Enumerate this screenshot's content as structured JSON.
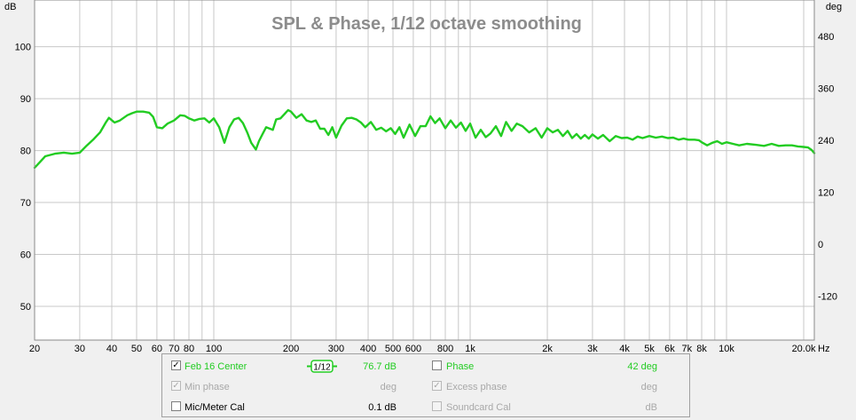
{
  "chart_data": {
    "type": "line",
    "title": "SPL & Phase, 1/12 octave smoothing",
    "ylabel": "dB",
    "y2label": "deg",
    "xunit": "Hz",
    "xscale": "log",
    "xlim": [
      20,
      22000
    ],
    "ylim": [
      43.5,
      109
    ],
    "y2lim": [
      -222,
      564
    ],
    "grid": true,
    "xticks": [
      {
        "v": 20,
        "label": "20"
      },
      {
        "v": 30,
        "label": "30"
      },
      {
        "v": 40,
        "label": "40"
      },
      {
        "v": 50,
        "label": "50"
      },
      {
        "v": 60,
        "label": "60"
      },
      {
        "v": 70,
        "label": "70"
      },
      {
        "v": 80,
        "label": "80"
      },
      {
        "v": 100,
        "label": "100"
      },
      {
        "v": 200,
        "label": "200"
      },
      {
        "v": 300,
        "label": "300"
      },
      {
        "v": 400,
        "label": "400"
      },
      {
        "v": 500,
        "label": "500"
      },
      {
        "v": 600,
        "label": "600"
      },
      {
        "v": 800,
        "label": "800"
      },
      {
        "v": 1000,
        "label": "1k"
      },
      {
        "v": 2000,
        "label": "2k"
      },
      {
        "v": 3000,
        "label": "3k"
      },
      {
        "v": 4000,
        "label": "4k"
      },
      {
        "v": 5000,
        "label": "5k"
      },
      {
        "v": 6000,
        "label": "6k"
      },
      {
        "v": 7000,
        "label": "7k"
      },
      {
        "v": 8000,
        "label": "8k"
      },
      {
        "v": 10000,
        "label": "10k"
      },
      {
        "v": 20000,
        "label": "20.0k"
      }
    ],
    "xgrid_minor": [
      90,
      700,
      900,
      9000
    ],
    "yticks": [
      50,
      60,
      70,
      80,
      90,
      100
    ],
    "y2ticks": [
      -120,
      0,
      120,
      240,
      360,
      480
    ],
    "series": [
      {
        "name": "Feb 16 Center",
        "color": "#22cc22",
        "x": [
          20,
          21,
          22,
          24,
          26,
          28,
          30,
          32,
          34,
          36,
          38,
          39,
          41,
          43,
          46,
          48,
          50,
          53,
          56,
          58,
          60,
          63,
          66,
          70,
          74,
          77,
          80,
          84,
          88,
          92,
          96,
          100,
          105,
          110,
          115,
          120,
          125,
          130,
          135,
          140,
          146,
          150,
          155,
          160,
          170,
          175,
          182,
          190,
          195,
          200,
          210,
          220,
          230,
          240,
          250,
          260,
          270,
          280,
          290,
          300,
          315,
          330,
          345,
          360,
          375,
          390,
          410,
          430,
          450,
          470,
          490,
          510,
          530,
          550,
          580,
          610,
          640,
          670,
          700,
          730,
          760,
          800,
          840,
          880,
          920,
          960,
          1000,
          1050,
          1100,
          1150,
          1200,
          1260,
          1320,
          1380,
          1450,
          1520,
          1600,
          1700,
          1800,
          1900,
          2000,
          2100,
          2200,
          2300,
          2400,
          2500,
          2600,
          2700,
          2800,
          2900,
          3000,
          3150,
          3300,
          3500,
          3700,
          3900,
          4100,
          4300,
          4500,
          4700,
          5000,
          5300,
          5600,
          5900,
          6200,
          6500,
          6800,
          7100,
          7500,
          7800,
          8000,
          8400,
          8800,
          9200,
          9600,
          10000,
          10600,
          11200,
          12000,
          13000,
          14000,
          15000,
          16000,
          17000,
          18000,
          19000,
          20000,
          20800,
          21500,
          22000
        ],
        "y": [
          76.7,
          77.8,
          78.9,
          79.4,
          79.6,
          79.4,
          79.6,
          81,
          82.2,
          83.5,
          85.5,
          86.3,
          85.4,
          85.8,
          86.8,
          87.2,
          87.5,
          87.5,
          87.3,
          86.5,
          84.5,
          84.3,
          85.2,
          85.8,
          86.8,
          86.7,
          86.2,
          85.8,
          86.1,
          86.2,
          85.4,
          86.2,
          84.5,
          81.5,
          84.5,
          86,
          86.3,
          85.3,
          83.5,
          81.5,
          80.2,
          81.8,
          83.2,
          84.5,
          84,
          86,
          86.2,
          87.2,
          87.8,
          87.5,
          86.3,
          87,
          85.8,
          85.5,
          85.8,
          84.2,
          84.2,
          83,
          84.5,
          82.5,
          84.8,
          86.2,
          86.3,
          86,
          85.4,
          84.5,
          85.5,
          84,
          84.4,
          83.7,
          84.3,
          83.2,
          84.5,
          82.5,
          85,
          82.8,
          84.7,
          84.7,
          86.6,
          85.3,
          86.2,
          84.3,
          85.8,
          84.4,
          85.4,
          83.8,
          85.2,
          82.5,
          84,
          82.6,
          83.3,
          84.7,
          82.8,
          85.5,
          83.8,
          85.2,
          84.7,
          83.5,
          84.3,
          82.5,
          84.3,
          83.5,
          84,
          82.8,
          83.8,
          82.4,
          83.2,
          82.3,
          83,
          82.3,
          83.1,
          82.3,
          83,
          81.8,
          82.8,
          82.4,
          82.5,
          82.1,
          82.7,
          82.4,
          82.8,
          82.5,
          82.7,
          82.4,
          82.5,
          82.1,
          82.3,
          82.1,
          82.1,
          82.0,
          81.6,
          81.0,
          81.5,
          81.8,
          81.3,
          81.6,
          81.3,
          81.0,
          81.3,
          81.1,
          80.9,
          81.3,
          80.9,
          81.0,
          81.0,
          80.8,
          80.7,
          80.6,
          80.1,
          79.5
        ]
      }
    ]
  },
  "legend": {
    "rows": [
      {
        "checked": "✓",
        "label": "Feb 16 Center",
        "smoothing": "1/12",
        "value": "76.7 dB",
        "phase_label": "Phase",
        "phase_value": "42 deg"
      },
      {
        "checked": "✓",
        "label": "Min phase",
        "value": "deg",
        "phase_checked": "✓",
        "phase_label": "Excess phase",
        "phase_value": "deg"
      },
      {
        "label": "Mic/Meter Cal",
        "value": "0.1 dB",
        "phase_label": "Soundcard Cal",
        "phase_value": "dB"
      }
    ]
  },
  "colors": {
    "trace": "#22cc22",
    "legend_green": "#22cc22",
    "disabled": "#a8a8a8"
  }
}
